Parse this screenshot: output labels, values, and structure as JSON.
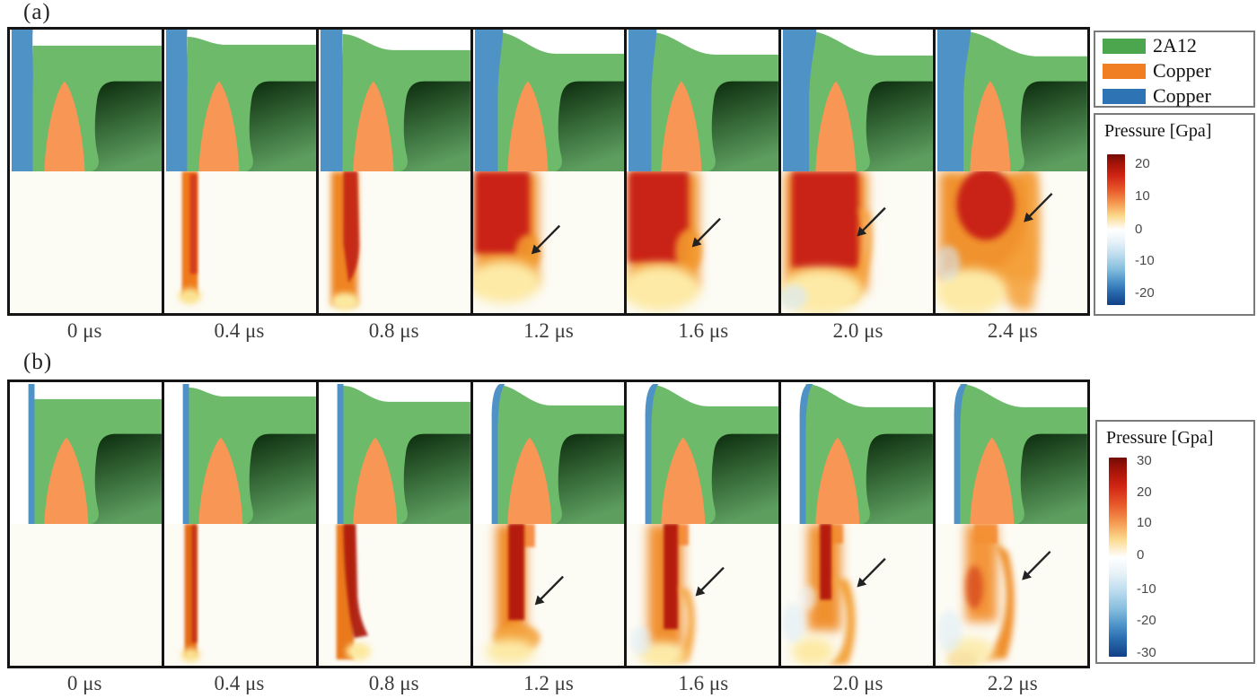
{
  "figure": {
    "row_a": {
      "label": "(a)",
      "panels": [
        {
          "time": "0 μs",
          "arrow": false
        },
        {
          "time": "0.4 μs",
          "arrow": false
        },
        {
          "time": "0.8 μs",
          "arrow": false
        },
        {
          "time": "1.2 μs",
          "arrow": true
        },
        {
          "time": "1.6 μs",
          "arrow": true
        },
        {
          "time": "2.0 μs",
          "arrow": true
        },
        {
          "time": "2.4 μs",
          "arrow": true
        }
      ]
    },
    "row_b": {
      "label": "(b)",
      "panels": [
        {
          "time": "0 μs",
          "arrow": false
        },
        {
          "time": "0.4 μs",
          "arrow": false
        },
        {
          "time": "0.8 μs",
          "arrow": false
        },
        {
          "time": "1.2 μs",
          "arrow": true
        },
        {
          "time": "1.6 μs",
          "arrow": true
        },
        {
          "time": "2.0 μs",
          "arrow": true
        },
        {
          "time": "2.2 μs",
          "arrow": true
        }
      ]
    },
    "materials_legend": {
      "items": [
        {
          "label": "2A12",
          "color": "#4ca64e"
        },
        {
          "label": "Copper",
          "color": "#f07f24"
        },
        {
          "label": "Copper",
          "color": "#2e73b4"
        }
      ]
    },
    "colorbar_a": {
      "title": "Pressure [Gpa]",
      "ticks": [
        "20",
        "10",
        "0",
        "-10",
        "-20"
      ]
    },
    "colorbar_b": {
      "title": "Pressure [Gpa]",
      "ticks": [
        "30",
        "20",
        "10",
        "0",
        "-10",
        "-20",
        "-30"
      ]
    },
    "palette": {
      "alloy_green": "#6cba6a",
      "hole_dark_green_top": "#0b2a0c",
      "hole_dark_green_bottom": "#5d9e5f",
      "liner_orange": "#f79655",
      "flyer_blue": "#4f92c6",
      "pressure_red": "#c92112",
      "pressure_orange": "#f0912f",
      "pressure_pale": "#fdeaa6",
      "lower_background": "#fcfbf4"
    }
  }
}
